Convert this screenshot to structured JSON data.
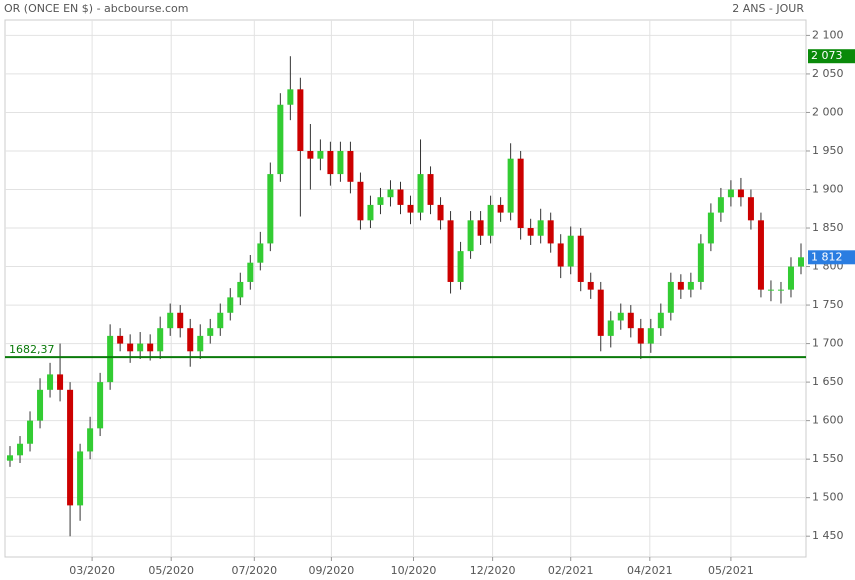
{
  "chart_data": {
    "type": "candlestick",
    "title": "OR (ONCE EN $) - abcbourse.com",
    "subtitle": "2 ANS - JOUR",
    "up_color": "#33cc33",
    "down_color": "#cc0000",
    "grid": true,
    "xlim": [
      0,
      80
    ],
    "xticks": [
      {
        "value": 8.7,
        "label": "03/2020"
      },
      {
        "value": 16.6,
        "label": "05/2020"
      },
      {
        "value": 24.9,
        "label": "07/2020"
      },
      {
        "value": 32.6,
        "label": "09/2020"
      },
      {
        "value": 40.8,
        "label": "10/2020"
      },
      {
        "value": 48.7,
        "label": "12/2020"
      },
      {
        "value": 56.5,
        "label": "02/2021"
      },
      {
        "value": 64.4,
        "label": "04/2021"
      },
      {
        "value": 72.5,
        "label": "05/2021"
      }
    ],
    "ylim": [
      1423,
      2120
    ],
    "yticks": [
      {
        "value": 1450,
        "label": "1 450"
      },
      {
        "value": 1500,
        "label": "1 500"
      },
      {
        "value": 1550,
        "label": "1 550"
      },
      {
        "value": 1600,
        "label": "1 600"
      },
      {
        "value": 1650,
        "label": "1 650"
      },
      {
        "value": 1700,
        "label": "1 700"
      },
      {
        "value": 1750,
        "label": "1 750"
      },
      {
        "value": 1800,
        "label": "1 800"
      },
      {
        "value": 1850,
        "label": "1 850"
      },
      {
        "value": 1900,
        "label": "1 900"
      },
      {
        "value": 1950,
        "label": "1 950"
      },
      {
        "value": 2000,
        "label": "2 000"
      },
      {
        "value": 2050,
        "label": "2 050"
      },
      {
        "value": 2100,
        "label": "2 100"
      }
    ],
    "level": {
      "value": 1682.37,
      "label": "1682,37",
      "color": "#0a7a0a"
    },
    "badges": [
      {
        "value": 2073,
        "label": "2 073",
        "color": "#0a8a0a"
      },
      {
        "value": 1812,
        "label": "1 812",
        "color": "#2a7de1"
      }
    ],
    "open": [
      1548,
      1555,
      1570,
      1600,
      1640,
      1660,
      1640,
      1490,
      1560,
      1590,
      1650,
      1710,
      1700,
      1690,
      1700,
      1690,
      1720,
      1740,
      1720,
      1690,
      1710,
      1720,
      1740,
      1760,
      1780,
      1805,
      1830,
      1920,
      2010,
      2030,
      1950,
      1940,
      1950,
      1920,
      1950,
      1910,
      1860,
      1880,
      1890,
      1900,
      1880,
      1870,
      1920,
      1880,
      1860,
      1780,
      1820,
      1860,
      1840,
      1880,
      1870,
      1940,
      1850,
      1840,
      1860,
      1830,
      1800,
      1840,
      1780,
      1770,
      1710,
      1730,
      1740,
      1720,
      1700,
      1720,
      1740,
      1780,
      1770,
      1780,
      1830,
      1870,
      1890,
      1900,
      1890,
      1860,
      1770,
      1770,
      1770,
      1800
    ],
    "high": [
      1567,
      1580,
      1612,
      1655,
      1675,
      1700,
      1650,
      1570,
      1605,
      1662,
      1725,
      1720,
      1712,
      1715,
      1712,
      1735,
      1752,
      1750,
      1732,
      1725,
      1732,
      1752,
      1772,
      1792,
      1815,
      1845,
      1935,
      2025,
      2073,
      2045,
      1985,
      1965,
      1962,
      1962,
      1962,
      1922,
      1892,
      1902,
      1912,
      1910,
      1892,
      1965,
      1930,
      1890,
      1872,
      1832,
      1872,
      1872,
      1892,
      1890,
      1960,
      1950,
      1862,
      1875,
      1870,
      1842,
      1852,
      1850,
      1792,
      1780,
      1742,
      1752,
      1750,
      1732,
      1732,
      1752,
      1792,
      1790,
      1792,
      1842,
      1882,
      1902,
      1912,
      1915,
      1900,
      1870,
      1782,
      1780,
      1812,
      1830
    ],
    "low": [
      1540,
      1545,
      1560,
      1590,
      1630,
      1625,
      1450,
      1470,
      1550,
      1580,
      1640,
      1690,
      1675,
      1680,
      1678,
      1680,
      1710,
      1708,
      1670,
      1680,
      1700,
      1710,
      1730,
      1750,
      1770,
      1795,
      1820,
      1910,
      1990,
      1865,
      1900,
      1925,
      1905,
      1910,
      1895,
      1848,
      1850,
      1868,
      1878,
      1868,
      1855,
      1860,
      1868,
      1848,
      1765,
      1770,
      1810,
      1828,
      1830,
      1858,
      1860,
      1835,
      1828,
      1830,
      1818,
      1785,
      1790,
      1768,
      1758,
      1690,
      1695,
      1718,
      1708,
      1680,
      1688,
      1710,
      1730,
      1758,
      1760,
      1770,
      1820,
      1858,
      1878,
      1878,
      1848,
      1760,
      1755,
      1752,
      1760,
      1790
    ],
    "close": [
      1555,
      1570,
      1600,
      1640,
      1660,
      1640,
      1490,
      1560,
      1590,
      1650,
      1710,
      1700,
      1690,
      1700,
      1690,
      1720,
      1740,
      1720,
      1690,
      1710,
      1720,
      1740,
      1760,
      1780,
      1805,
      1830,
      1920,
      2010,
      2030,
      1950,
      1940,
      1950,
      1920,
      1950,
      1910,
      1860,
      1880,
      1890,
      1900,
      1880,
      1870,
      1920,
      1880,
      1860,
      1780,
      1820,
      1860,
      1840,
      1880,
      1870,
      1940,
      1850,
      1840,
      1860,
      1830,
      1800,
      1840,
      1780,
      1770,
      1710,
      1730,
      1740,
      1720,
      1700,
      1720,
      1740,
      1780,
      1770,
      1780,
      1830,
      1870,
      1890,
      1900,
      1890,
      1860,
      1770,
      1770,
      1770,
      1800,
      1812
    ]
  }
}
